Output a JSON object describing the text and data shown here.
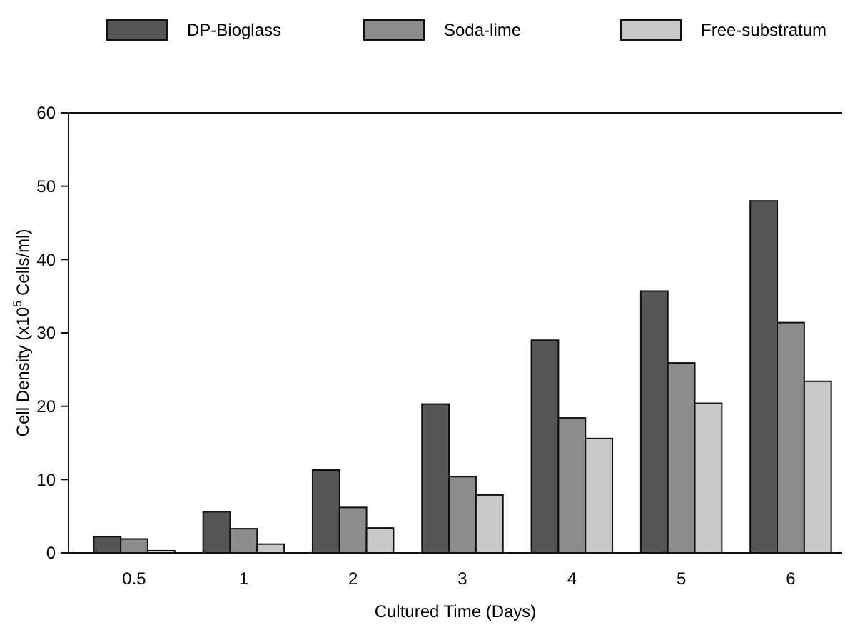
{
  "chart_data": {
    "type": "bar",
    "categories": [
      "0.5",
      "1",
      "2",
      "3",
      "4",
      "5",
      "6"
    ],
    "series": [
      {
        "name": "DP-Bioglass",
        "color": "#555555",
        "values": [
          2.2,
          5.6,
          11.3,
          20.3,
          29,
          35.7,
          48
        ]
      },
      {
        "name": "Soda-lime",
        "color": "#8c8c8c",
        "values": [
          1.9,
          3.3,
          6.2,
          10.4,
          18.4,
          25.9,
          31.4
        ]
      },
      {
        "name": "Free-substratum",
        "color": "#c8c8c8",
        "values": [
          0.3,
          1.2,
          3.4,
          7.9,
          15.6,
          20.4,
          23.4
        ]
      }
    ],
    "xlabel": "Cultured Time (Days)",
    "ylabel": "Cell Density (x10$^{5}$ Cells/ml)",
    "ylim": [
      0,
      60
    ],
    "yticks": [
      0,
      10,
      20,
      30,
      40,
      50,
      60
    ],
    "grid": false,
    "legend": "top"
  }
}
